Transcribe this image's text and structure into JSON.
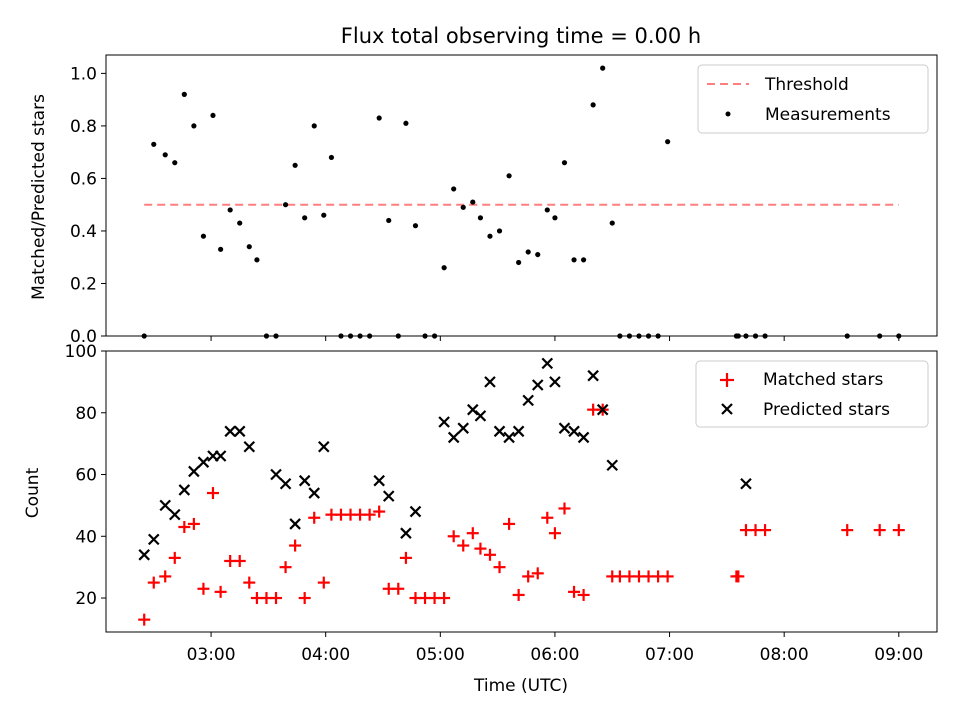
{
  "colors": {
    "threshold": "#ff7f7f",
    "measurement": "#000000",
    "matched": "#ff0000",
    "predicted": "#000000"
  },
  "chart_data": [
    {
      "type": "scatter",
      "title": "Flux total observing time = 0.00 h",
      "xlabel": "",
      "ylabel": "Matched/Predicted stars",
      "xlim": [
        "02:05",
        "09:20"
      ],
      "ylim": [
        0,
        1.07
      ],
      "y_ticks": [
        0.0,
        0.2,
        0.4,
        0.6,
        0.8,
        1.0
      ],
      "y_tick_labels": [
        "0.0",
        "0.2",
        "0.4",
        "0.6",
        "0.8",
        "1.0"
      ],
      "legend_position": "top-right",
      "legend": [
        {
          "label": "Threshold",
          "style": "dashed-line"
        },
        {
          "label": "Measurements",
          "style": "dot"
        }
      ],
      "threshold": {
        "name": "Threshold",
        "value": 0.5,
        "x_range": [
          "02:25",
          "09:00"
        ]
      },
      "series": [
        {
          "name": "Measurements",
          "x": [
            "02:25",
            "02:30",
            "02:36",
            "02:41",
            "02:46",
            "02:51",
            "02:56",
            "03:01",
            "03:05",
            "03:10",
            "03:15",
            "03:20",
            "03:24",
            "03:29",
            "03:34",
            "03:39",
            "03:44",
            "03:49",
            "03:54",
            "03:59",
            "04:03",
            "04:08",
            "04:13",
            "04:18",
            "04:23",
            "04:28",
            "04:33",
            "04:38",
            "04:42",
            "04:47",
            "04:52",
            "04:57",
            "05:02",
            "05:07",
            "05:12",
            "05:17",
            "05:21",
            "05:26",
            "05:31",
            "05:36",
            "05:41",
            "05:46",
            "05:51",
            "05:56",
            "06:00",
            "06:05",
            "06:10",
            "06:15",
            "06:20",
            "06:25",
            "06:30",
            "06:34",
            "06:39",
            "06:44",
            "06:49",
            "06:54",
            "06:59",
            "07:35",
            "07:36",
            "07:40",
            "07:45",
            "07:50",
            "08:33",
            "08:50",
            "09:00"
          ],
          "y": [
            0.0,
            0.73,
            0.69,
            0.66,
            0.92,
            0.8,
            0.38,
            0.84,
            0.33,
            0.48,
            0.43,
            0.34,
            0.29,
            0.0,
            0.0,
            0.5,
            0.65,
            0.45,
            0.8,
            0.46,
            0.68,
            0.0,
            0.0,
            0.0,
            0.0,
            0.83,
            0.44,
            0.0,
            0.81,
            0.42,
            0.0,
            0.0,
            0.26,
            0.56,
            0.49,
            0.51,
            0.45,
            0.38,
            0.4,
            0.61,
            0.28,
            0.32,
            0.31,
            0.48,
            0.45,
            0.66,
            0.29,
            0.29,
            0.88,
            1.02,
            0.43,
            0.0,
            0.0,
            0.0,
            0.0,
            0.0,
            0.74,
            0.0,
            0.0,
            0.0,
            0.0,
            0.0,
            0.0,
            0.0,
            0.0
          ]
        }
      ]
    },
    {
      "type": "scatter",
      "title": "",
      "xlabel": "Time (UTC)",
      "ylabel": "Count",
      "xlim": [
        "02:05",
        "09:20"
      ],
      "ylim": [
        9,
        100
      ],
      "x_ticks": [
        "03:00",
        "04:00",
        "05:00",
        "06:00",
        "07:00",
        "08:00",
        "09:00"
      ],
      "y_ticks": [
        20,
        40,
        60,
        80,
        100
      ],
      "y_tick_labels": [
        "20",
        "40",
        "60",
        "80",
        "100"
      ],
      "legend_position": "top-right",
      "legend": [
        {
          "label": "Matched stars",
          "style": "plus"
        },
        {
          "label": "Predicted stars",
          "style": "cross"
        }
      ],
      "series": [
        {
          "name": "Matched stars",
          "x": [
            "02:25",
            "02:30",
            "02:36",
            "02:41",
            "02:46",
            "02:51",
            "02:56",
            "03:01",
            "03:05",
            "03:10",
            "03:15",
            "03:20",
            "03:24",
            "03:29",
            "03:34",
            "03:39",
            "03:44",
            "03:49",
            "03:54",
            "03:59",
            "04:03",
            "04:08",
            "04:13",
            "04:18",
            "04:23",
            "04:28",
            "04:33",
            "04:38",
            "04:42",
            "04:47",
            "04:52",
            "04:57",
            "05:02",
            "05:07",
            "05:12",
            "05:17",
            "05:21",
            "05:26",
            "05:31",
            "05:36",
            "05:41",
            "05:46",
            "05:51",
            "05:56",
            "06:00",
            "06:05",
            "06:10",
            "06:15",
            "06:20",
            "06:25",
            "06:30",
            "06:34",
            "06:39",
            "06:44",
            "06:49",
            "06:54",
            "06:59",
            "07:35",
            "07:36",
            "07:40",
            "07:45",
            "07:50",
            "08:33",
            "08:50",
            "09:00"
          ],
          "y": [
            13,
            25,
            27,
            33,
            43,
            44,
            23,
            54,
            22,
            32,
            32,
            25,
            20,
            20,
            20,
            30,
            37,
            20,
            46,
            25,
            47,
            47,
            47,
            47,
            47,
            48,
            23,
            23,
            33,
            20,
            20,
            20,
            20,
            40,
            37,
            41,
            36,
            34,
            30,
            44,
            21,
            27,
            28,
            46,
            41,
            49,
            22,
            21,
            81,
            81,
            27,
            27,
            27,
            27,
            27,
            27,
            27,
            27,
            27,
            42,
            42,
            42,
            42,
            42,
            42
          ]
        },
        {
          "name": "Predicted stars",
          "x": [
            "02:25",
            "02:30",
            "02:36",
            "02:41",
            "02:46",
            "02:51",
            "02:56",
            "03:01",
            "03:05",
            "03:10",
            "03:15",
            "03:20",
            "03:24",
            "03:29",
            "03:34",
            "03:39",
            "03:44",
            "03:49",
            "03:54",
            "03:59",
            "04:03",
            "04:08",
            "04:13",
            "04:18",
            "04:23",
            "04:28",
            "04:33",
            "04:38",
            "04:42",
            "04:47",
            "04:52",
            "04:57",
            "05:02",
            "05:07",
            "05:12",
            "05:17",
            "05:21",
            "05:26",
            "05:31",
            "05:36",
            "05:41",
            "05:46",
            "05:51",
            "05:56",
            "06:00",
            "06:05",
            "06:10",
            "06:15",
            "06:20",
            "06:25",
            "06:30",
            "06:34",
            "06:39",
            "06:44",
            "06:49",
            "06:54",
            "06:59",
            "07:35",
            "07:36",
            "07:40",
            "07:45",
            "07:50",
            "08:33",
            "08:50",
            "09:00"
          ],
          "y": [
            34,
            39,
            50,
            47,
            55,
            61,
            64,
            66,
            66,
            74,
            74,
            69,
            null,
            null,
            60,
            57,
            44,
            58,
            54,
            69,
            null,
            null,
            null,
            null,
            null,
            58,
            53,
            null,
            41,
            48,
            null,
            null,
            77,
            72,
            75,
            81,
            79,
            90,
            74,
            72,
            74,
            84,
            89,
            96,
            90,
            75,
            74,
            72,
            92,
            81,
            63,
            null,
            null,
            null,
            null,
            null,
            null,
            null,
            null,
            57,
            null,
            null,
            null,
            null,
            null
          ]
        }
      ]
    }
  ]
}
